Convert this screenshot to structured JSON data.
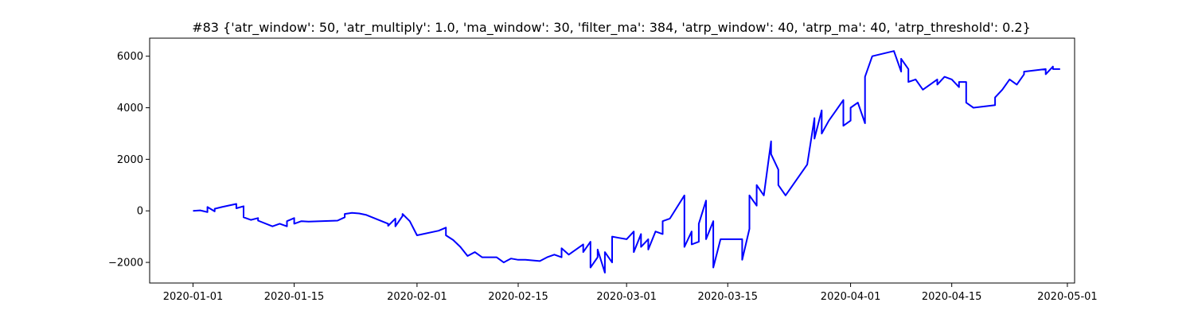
{
  "chart_data": {
    "type": "line",
    "title": "#83 {'atr_window': 50, 'atr_multiply': 1.0, 'ma_window': 30, 'filter_ma': 384, 'atrp_window': 40, 'atrp_ma': 40, 'atrp_threshold': 0.2}",
    "xlabel": "",
    "ylabel": "",
    "x_tick_labels": [
      "2020-01-01",
      "2020-01-15",
      "2020-02-01",
      "2020-02-15",
      "2020-03-01",
      "2020-03-15",
      "2020-04-01",
      "2020-04-15",
      "2020-05-01"
    ],
    "y_tick_labels": [
      "−2000",
      "0",
      "2000",
      "4000",
      "6000"
    ],
    "y_ticks": [
      -2000,
      0,
      2000,
      4000,
      6000
    ],
    "xlim": [
      "2019-12-26",
      "2020-05-02"
    ],
    "ylim": [
      -2800,
      6700
    ],
    "grid": false,
    "line_color": "#0000ff",
    "series": [
      {
        "x": [
          "2020-01-01",
          "2020-01-02",
          "2020-01-03",
          "2020-01-03",
          "2020-01-04",
          "2020-01-04",
          "2020-01-05",
          "2020-01-07",
          "2020-01-07",
          "2020-01-08",
          "2020-01-08",
          "2020-01-09",
          "2020-01-10",
          "2020-01-10",
          "2020-01-12",
          "2020-01-13",
          "2020-01-14",
          "2020-01-14",
          "2020-01-15",
          "2020-01-15",
          "2020-01-16",
          "2020-01-17",
          "2020-01-21",
          "2020-01-22",
          "2020-01-22",
          "2020-01-23",
          "2020-01-24",
          "2020-01-25",
          "2020-01-28",
          "2020-01-28",
          "2020-01-29",
          "2020-01-29",
          "2020-01-30",
          "2020-01-30",
          "2020-01-31",
          "2020-02-01",
          "2020-02-04",
          "2020-02-05",
          "2020-02-05",
          "2020-02-06",
          "2020-02-07",
          "2020-02-08",
          "2020-02-09",
          "2020-02-10",
          "2020-02-12",
          "2020-02-13",
          "2020-02-14",
          "2020-02-15",
          "2020-02-16",
          "2020-02-18",
          "2020-02-19",
          "2020-02-20",
          "2020-02-21",
          "2020-02-21",
          "2020-02-22",
          "2020-02-24",
          "2020-02-24",
          "2020-02-25",
          "2020-02-25",
          "2020-02-26",
          "2020-02-26",
          "2020-02-27",
          "2020-02-27",
          "2020-02-28",
          "2020-02-28",
          "2020-02-29",
          "2020-03-01",
          "2020-03-02",
          "2020-03-02",
          "2020-03-03",
          "2020-03-03",
          "2020-03-04",
          "2020-03-04",
          "2020-03-05",
          "2020-03-06",
          "2020-03-06",
          "2020-03-07",
          "2020-03-09",
          "2020-03-09",
          "2020-03-10",
          "2020-03-10",
          "2020-03-11",
          "2020-03-11",
          "2020-03-12",
          "2020-03-12",
          "2020-03-13",
          "2020-03-13",
          "2020-03-14",
          "2020-03-17",
          "2020-03-17",
          "2020-03-18",
          "2020-03-18",
          "2020-03-19",
          "2020-03-19",
          "2020-03-20",
          "2020-03-21",
          "2020-03-21",
          "2020-03-22",
          "2020-03-22",
          "2020-03-23",
          "2020-03-26",
          "2020-03-27",
          "2020-03-27",
          "2020-03-28",
          "2020-03-28",
          "2020-03-29",
          "2020-03-30",
          "2020-03-31",
          "2020-03-31",
          "2020-04-01",
          "2020-04-01",
          "2020-04-02",
          "2020-04-03",
          "2020-04-03",
          "2020-04-04",
          "2020-04-07",
          "2020-04-08",
          "2020-04-08",
          "2020-04-09",
          "2020-04-09",
          "2020-04-10",
          "2020-04-11",
          "2020-04-13",
          "2020-04-13",
          "2020-04-14",
          "2020-04-15",
          "2020-04-16",
          "2020-04-16",
          "2020-04-17",
          "2020-04-17",
          "2020-04-18",
          "2020-04-21",
          "2020-04-21",
          "2020-04-22",
          "2020-04-23",
          "2020-04-24",
          "2020-04-25",
          "2020-04-25",
          "2020-04-28",
          "2020-04-28",
          "2020-04-29",
          "2020-04-29",
          "2020-04-30"
        ],
        "y": [
          0,
          20,
          -50,
          150,
          -20,
          80,
          150,
          270,
          100,
          180,
          -250,
          -350,
          -280,
          -380,
          -600,
          -500,
          -600,
          -400,
          -280,
          -500,
          -400,
          -420,
          -380,
          -250,
          -120,
          -80,
          -100,
          -160,
          -500,
          -580,
          -300,
          -600,
          -200,
          -120,
          -400,
          -950,
          -770,
          -650,
          -950,
          -1130,
          -1400,
          -1750,
          -1600,
          -1800,
          -1800,
          -2000,
          -1850,
          -1900,
          -1900,
          -1950,
          -1800,
          -1700,
          -1800,
          -1450,
          -1700,
          -1300,
          -1600,
          -1200,
          -2200,
          -1800,
          -1500,
          -2400,
          -1600,
          -2000,
          -1000,
          -1050,
          -1100,
          -800,
          -1600,
          -900,
          -1400,
          -1100,
          -1500,
          -800,
          -900,
          -400,
          -300,
          600,
          -1400,
          -800,
          -1300,
          -1200,
          -500,
          400,
          -1100,
          -400,
          -2200,
          -1100,
          -1100,
          -1900,
          -700,
          600,
          200,
          1000,
          600,
          2700,
          2200,
          1600,
          1000,
          600,
          1800,
          3600,
          2800,
          3900,
          3000,
          3500,
          3900,
          4300,
          3300,
          3500,
          4000,
          4200,
          3400,
          5200,
          6000,
          6200,
          5400,
          5900,
          5500,
          5000,
          5100,
          4700,
          5100,
          4900,
          5200,
          5100,
          4800,
          5000,
          5000,
          4200,
          4000,
          4100,
          4400,
          4700,
          5100,
          4900,
          5300,
          5400,
          5500,
          5300,
          5600,
          5500,
          5500
        ]
      }
    ]
  }
}
